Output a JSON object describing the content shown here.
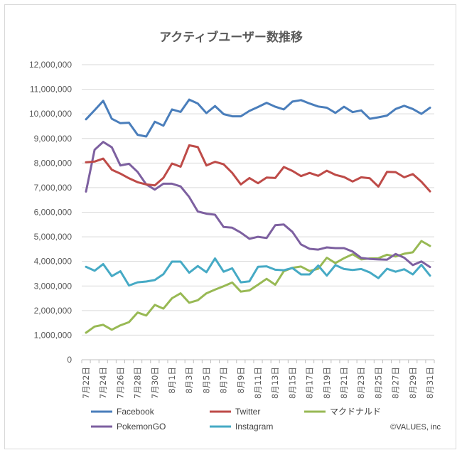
{
  "chart_data": {
    "type": "line",
    "title": "アクティブユーザー数推移",
    "xlabel": "",
    "ylabel": "",
    "ylim": [
      0,
      12000000
    ],
    "yticks": [
      0,
      1000000,
      2000000,
      3000000,
      4000000,
      5000000,
      6000000,
      7000000,
      8000000,
      9000000,
      10000000,
      11000000,
      12000000
    ],
    "ytick_labels": [
      "0",
      "1,000,000",
      "2,000,000",
      "3,000,000",
      "4,000,000",
      "5,000,000",
      "6,000,000",
      "7,000,000",
      "8,000,000",
      "9,000,000",
      "10,000,000",
      "11,000,000",
      "12,000,000"
    ],
    "grid": true,
    "legend_position": "bottom",
    "credit": "©VALUES, inc",
    "categories": [
      "7月22日",
      "7月23日",
      "7月24日",
      "7月25日",
      "7月26日",
      "7月27日",
      "7月28日",
      "7月29日",
      "7月30日",
      "7月31日",
      "8月1日",
      "8月2日",
      "8月3日",
      "8月4日",
      "8月5日",
      "8月6日",
      "8月7日",
      "8月8日",
      "8月9日",
      "8月10日",
      "8月11日",
      "8月12日",
      "8月13日",
      "8月14日",
      "8月15日",
      "8月16日",
      "8月17日",
      "8月18日",
      "8月19日",
      "8月20日",
      "8月21日",
      "8月22日",
      "8月23日",
      "8月24日",
      "8月25日",
      "8月26日",
      "8月27日",
      "8月28日",
      "8月29日",
      "8月30日",
      "8月31日"
    ],
    "tick_labels": [
      "7月22日",
      "7月24日",
      "7月26日",
      "7月28日",
      "7月30日",
      "8月1日",
      "8月3日",
      "8月5日",
      "8月7日",
      "8月9日",
      "8月11日",
      "8月13日",
      "8月15日",
      "8月17日",
      "8月19日",
      "8月21日",
      "8月23日",
      "8月25日",
      "8月27日",
      "8月29日",
      "8月31日"
    ],
    "series": [
      {
        "name": "Facebook",
        "color": "#4a7ebb",
        "values": [
          9780000,
          10150000,
          10530000,
          9800000,
          9620000,
          9640000,
          9150000,
          9080000,
          9680000,
          9520000,
          10180000,
          10080000,
          10580000,
          10420000,
          10030000,
          10320000,
          9990000,
          9900000,
          9900000,
          10120000,
          10280000,
          10450000,
          10290000,
          10180000,
          10500000,
          10560000,
          10420000,
          10300000,
          10250000,
          10040000,
          10290000,
          10070000,
          10140000,
          9800000,
          9860000,
          9930000,
          10200000,
          10330000,
          10200000,
          10000000,
          10250000
        ]
      },
      {
        "name": "Twitter",
        "color": "#be4b48",
        "values": [
          8030000,
          8060000,
          8180000,
          7730000,
          7570000,
          7380000,
          7220000,
          7130000,
          7090000,
          7400000,
          7980000,
          7850000,
          8720000,
          8650000,
          7900000,
          8050000,
          7950000,
          7600000,
          7130000,
          7390000,
          7180000,
          7410000,
          7390000,
          7840000,
          7680000,
          7470000,
          7600000,
          7480000,
          7690000,
          7520000,
          7430000,
          7250000,
          7420000,
          7380000,
          7040000,
          7640000,
          7630000,
          7420000,
          7550000,
          7240000,
          6850000
        ]
      },
      {
        "name": "マクドナルド",
        "color": "#98b954",
        "values": [
          1100000,
          1350000,
          1420000,
          1220000,
          1400000,
          1530000,
          1920000,
          1800000,
          2230000,
          2080000,
          2500000,
          2700000,
          2320000,
          2420000,
          2700000,
          2850000,
          2990000,
          3140000,
          2770000,
          2820000,
          3050000,
          3290000,
          3050000,
          3600000,
          3740000,
          3790000,
          3610000,
          3700000,
          4150000,
          3930000,
          4130000,
          4290000,
          4080000,
          4120000,
          4130000,
          4270000,
          4200000,
          4310000,
          4370000,
          4830000,
          4630000
        ]
      },
      {
        "name": "PokemonGO",
        "color": "#7d60a0",
        "values": [
          6840000,
          8540000,
          8860000,
          8640000,
          7900000,
          7970000,
          7640000,
          7130000,
          6920000,
          7160000,
          7160000,
          7050000,
          6620000,
          6030000,
          5940000,
          5900000,
          5400000,
          5370000,
          5170000,
          4920000,
          5000000,
          4950000,
          5470000,
          5500000,
          5200000,
          4690000,
          4510000,
          4480000,
          4570000,
          4540000,
          4540000,
          4400000,
          4140000,
          4100000,
          4080000,
          4070000,
          4300000,
          4150000,
          3850000,
          4000000,
          3770000
        ]
      },
      {
        "name": "Instagram",
        "color": "#46aac5",
        "values": [
          3780000,
          3620000,
          3890000,
          3400000,
          3600000,
          3020000,
          3150000,
          3180000,
          3240000,
          3480000,
          3990000,
          3990000,
          3540000,
          3810000,
          3560000,
          4120000,
          3580000,
          3720000,
          3150000,
          3190000,
          3780000,
          3800000,
          3660000,
          3640000,
          3730000,
          3470000,
          3470000,
          3830000,
          3420000,
          3850000,
          3690000,
          3650000,
          3690000,
          3550000,
          3320000,
          3700000,
          3580000,
          3680000,
          3470000,
          3860000,
          3420000
        ]
      }
    ]
  }
}
